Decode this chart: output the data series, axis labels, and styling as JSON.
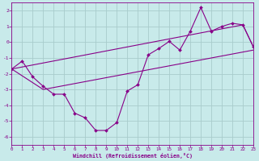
{
  "xlabel": "Windchill (Refroidissement éolien,°C)",
  "xlim": [
    0,
    23
  ],
  "ylim": [
    -6.5,
    2.5
  ],
  "xticks": [
    0,
    1,
    2,
    3,
    4,
    5,
    6,
    7,
    8,
    9,
    10,
    11,
    12,
    13,
    14,
    15,
    16,
    17,
    18,
    19,
    20,
    21,
    22,
    23
  ],
  "yticks": [
    -6,
    -5,
    -4,
    -3,
    -2,
    -1,
    0,
    1,
    2
  ],
  "background_color": "#c8eaea",
  "grid_color": "#a8cccc",
  "line_color": "#880088",
  "hours": [
    0,
    1,
    2,
    3,
    4,
    5,
    6,
    7,
    8,
    9,
    10,
    11,
    12,
    13,
    14,
    15,
    16,
    17,
    18,
    19,
    20,
    21,
    22,
    23
  ],
  "data_line": [
    -1.7,
    -1.2,
    -2.2,
    -2.8,
    -3.3,
    -3.3,
    -4.5,
    -4.8,
    -5.6,
    -5.6,
    -5.1,
    -3.1,
    -2.7,
    -0.8,
    -0.4,
    0.05,
    -0.5,
    0.7,
    2.2,
    0.7,
    1.0,
    1.2,
    1.1,
    -0.3
  ],
  "upper_trend_x": [
    0,
    22,
    23
  ],
  "upper_trend_y": [
    -1.7,
    1.1,
    -0.3
  ],
  "lower_trend_x": [
    0,
    3,
    23
  ],
  "lower_trend_y": [
    -1.7,
    -3.0,
    -0.5
  ]
}
